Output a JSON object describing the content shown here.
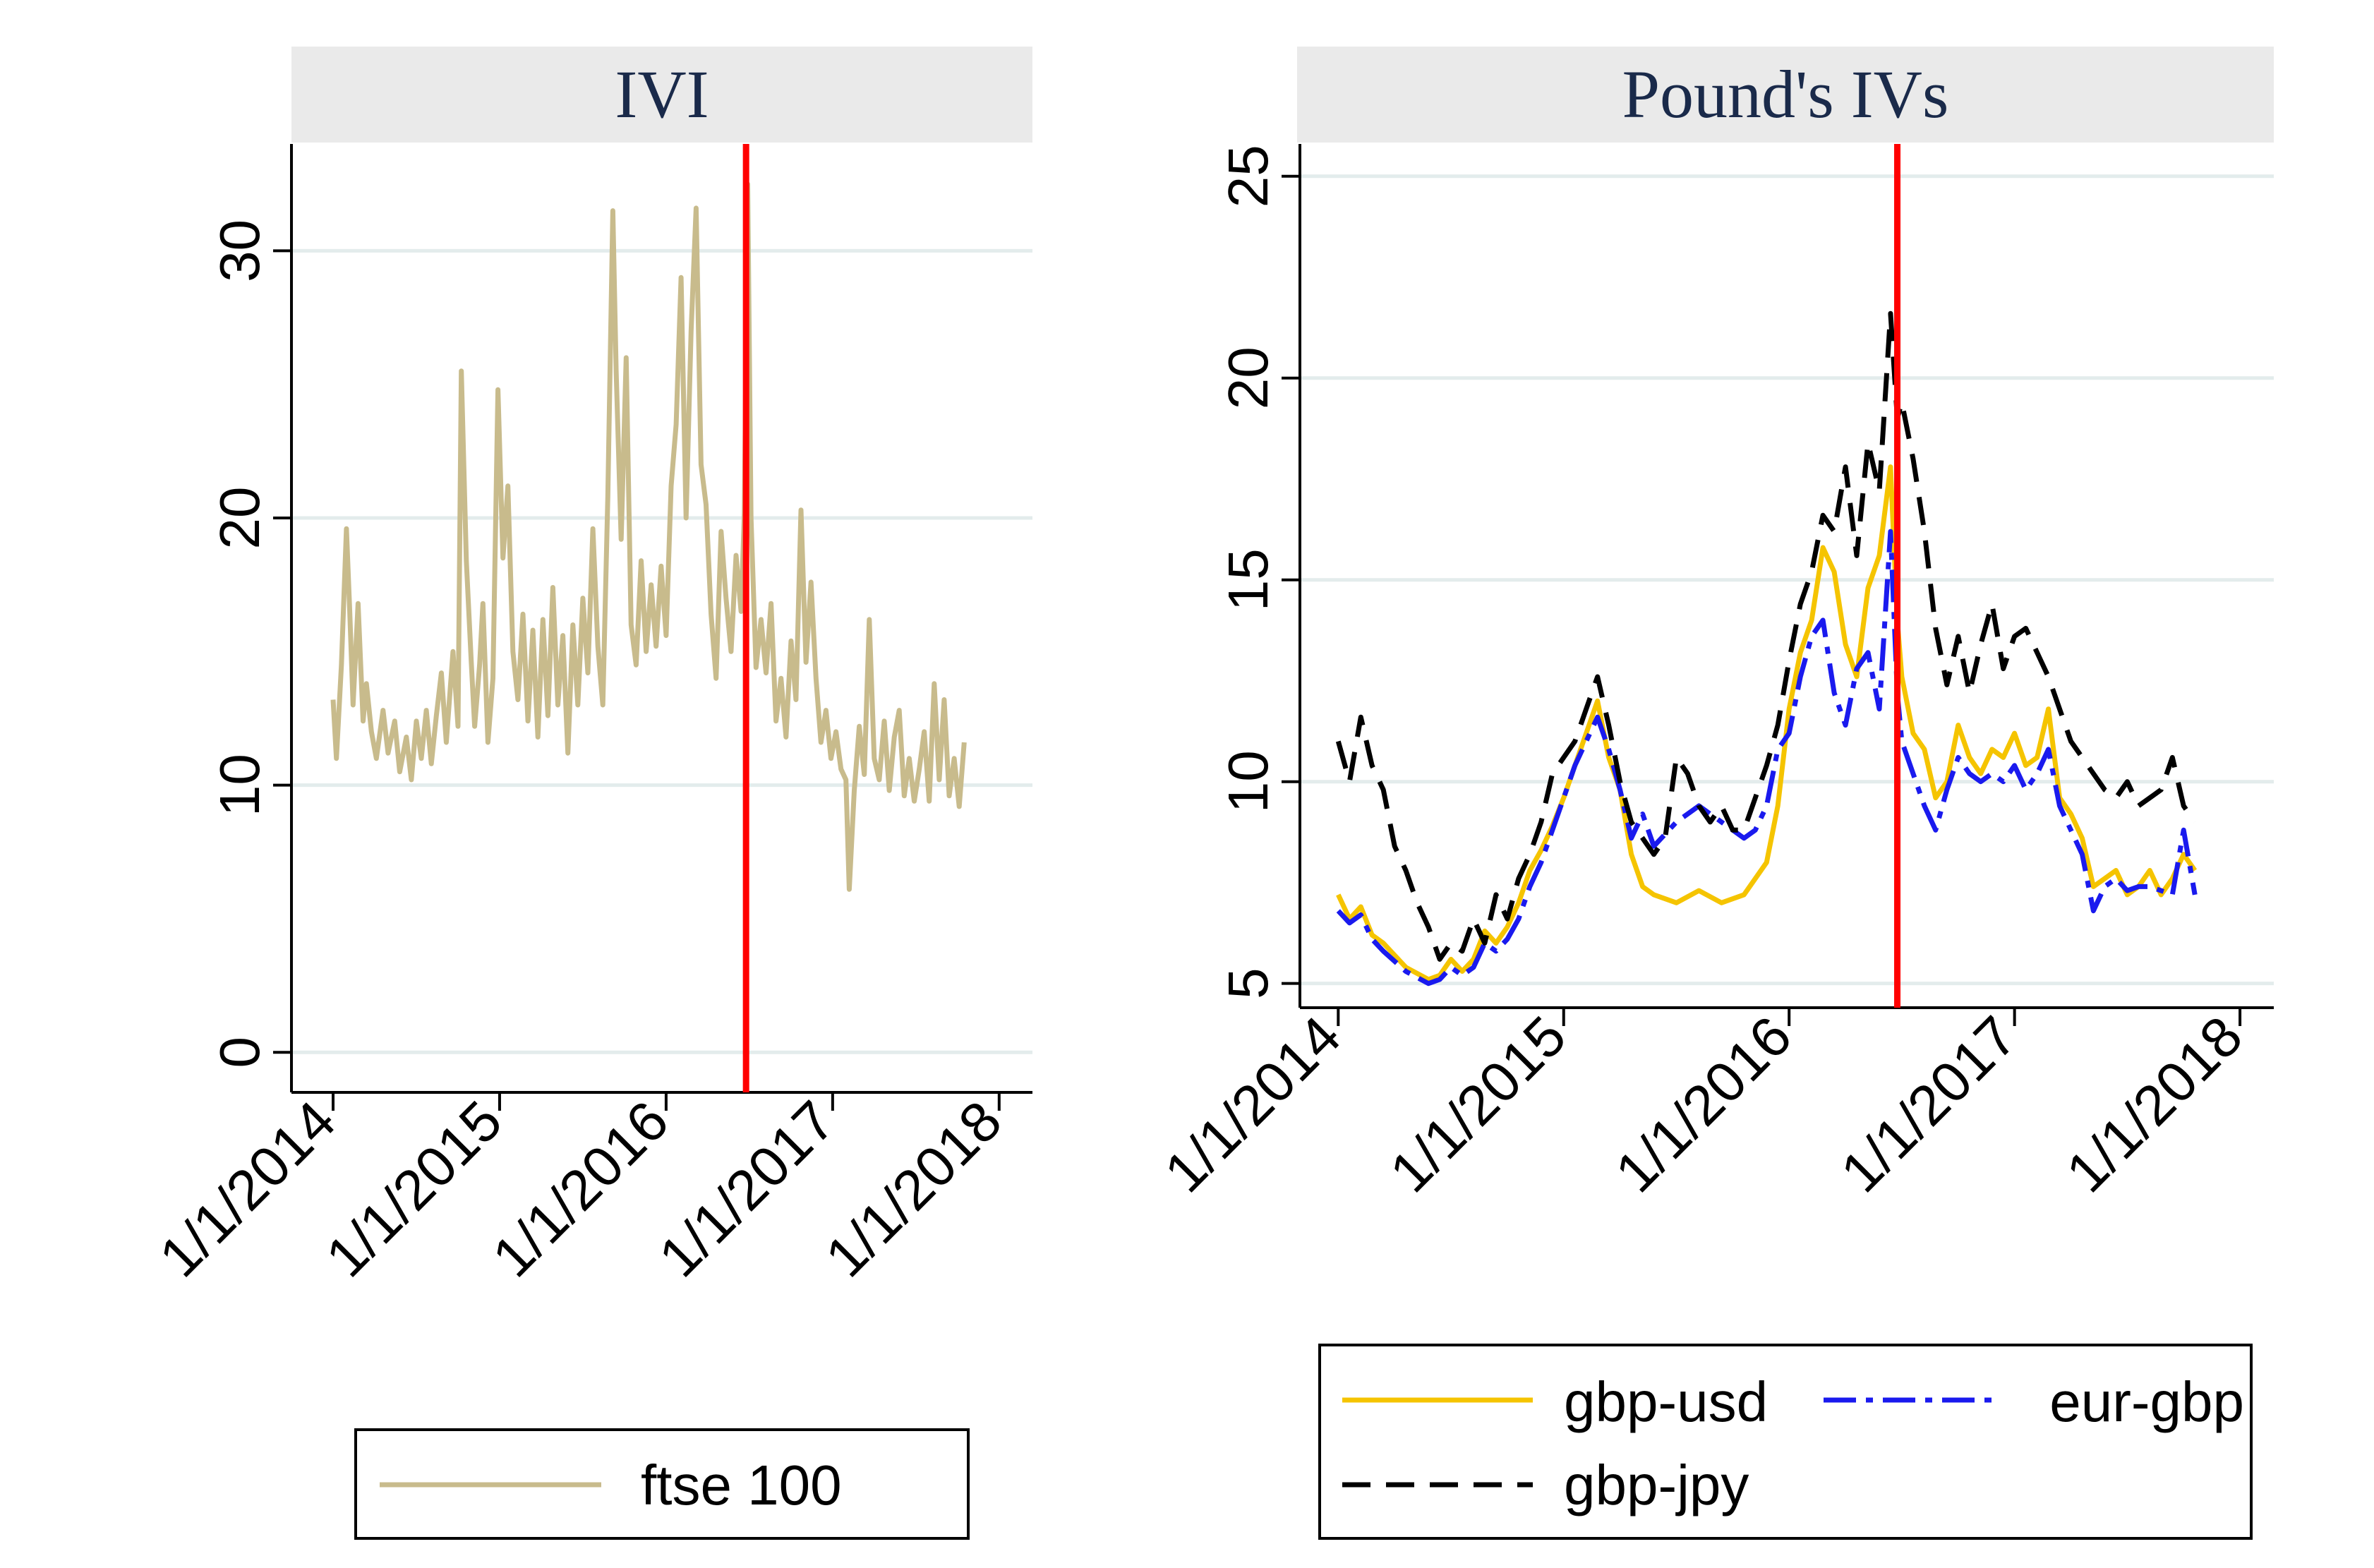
{
  "chart_data": [
    {
      "type": "line",
      "title": "IVI",
      "xlabel": "",
      "ylabel": "",
      "ylim": [
        -1.5,
        34
      ],
      "yticks": [
        0,
        10,
        20,
        30
      ],
      "ytick_labels": [
        "0",
        "10",
        "20",
        "30"
      ],
      "xlim": [
        -0.25,
        4.2
      ],
      "xticks": [
        0,
        1,
        2,
        3,
        4
      ],
      "xtick_labels": [
        "1/1/2014",
        "1/1/2015",
        "1/1/2016",
        "1/1/2017",
        "1/1/2018"
      ],
      "grid": true,
      "event_line": {
        "x": 2.48,
        "color": "#ff0000"
      },
      "legend": {
        "position": "bottom-center",
        "entries": [
          "ftse 100"
        ]
      },
      "series": [
        {
          "name": "ftse 100",
          "color": "#c8bb8c",
          "dash": "solid",
          "x": [
            0.0,
            0.02,
            0.05,
            0.08,
            0.1,
            0.12,
            0.15,
            0.18,
            0.2,
            0.23,
            0.26,
            0.3,
            0.33,
            0.37,
            0.4,
            0.44,
            0.47,
            0.5,
            0.53,
            0.56,
            0.59,
            0.62,
            0.65,
            0.68,
            0.72,
            0.75,
            0.77,
            0.8,
            0.83,
            0.85,
            0.88,
            0.9,
            0.93,
            0.96,
            0.99,
            1.02,
            1.05,
            1.08,
            1.11,
            1.14,
            1.17,
            1.2,
            1.23,
            1.26,
            1.29,
            1.32,
            1.35,
            1.38,
            1.41,
            1.44,
            1.47,
            1.5,
            1.53,
            1.56,
            1.59,
            1.62,
            1.65,
            1.68,
            1.7,
            1.73,
            1.76,
            1.79,
            1.82,
            1.85,
            1.88,
            1.91,
            1.94,
            1.97,
            2.0,
            2.03,
            2.06,
            2.09,
            2.12,
            2.15,
            2.18,
            2.21,
            2.24,
            2.27,
            2.3,
            2.33,
            2.36,
            2.39,
            2.42,
            2.45,
            2.47,
            2.49,
            2.51,
            2.54,
            2.57,
            2.6,
            2.63,
            2.66,
            2.69,
            2.72,
            2.75,
            2.78,
            2.81,
            2.84,
            2.87,
            2.9,
            2.93,
            2.96,
            2.99,
            3.02,
            3.05,
            3.08,
            3.1,
            3.13,
            3.16,
            3.19,
            3.22,
            3.25,
            3.28,
            3.31,
            3.34,
            3.37,
            3.4,
            3.43,
            3.46,
            3.49,
            3.52,
            3.55,
            3.58,
            3.61,
            3.64,
            3.67,
            3.7,
            3.73,
            3.76,
            3.79
          ],
          "values": [
            13.2,
            11.0,
            14.5,
            19.6,
            16.5,
            13.0,
            16.8,
            12.4,
            13.8,
            12.0,
            11.0,
            12.8,
            11.2,
            12.4,
            10.5,
            11.8,
            10.2,
            12.4,
            11.0,
            12.8,
            10.8,
            12.6,
            14.2,
            11.6,
            15.0,
            12.2,
            25.5,
            18.4,
            14.6,
            12.2,
            14.5,
            16.8,
            11.6,
            14.0,
            24.8,
            18.5,
            21.2,
            15.0,
            13.2,
            16.4,
            12.4,
            15.8,
            11.8,
            16.2,
            12.6,
            17.4,
            13.0,
            15.6,
            11.2,
            16.0,
            13.0,
            17.0,
            14.2,
            19.6,
            15.2,
            13.0,
            20.8,
            31.5,
            25.5,
            19.2,
            26.0,
            16.0,
            14.5,
            18.4,
            15.0,
            17.5,
            15.2,
            18.2,
            15.6,
            21.2,
            23.5,
            29.0,
            20.0,
            27.0,
            31.6,
            22.0,
            20.5,
            16.4,
            14.0,
            19.5,
            17.0,
            15.0,
            18.6,
            16.5,
            20.2,
            32.5,
            20.0,
            14.4,
            16.2,
            14.2,
            16.8,
            12.4,
            14.0,
            11.8,
            15.4,
            13.2,
            20.3,
            14.6,
            17.6,
            14.0,
            11.6,
            12.8,
            11.0,
            12.0,
            10.6,
            10.2,
            6.1,
            9.8,
            12.2,
            10.4,
            16.2,
            11.0,
            10.2,
            12.4,
            9.8,
            11.8,
            12.8,
            9.6,
            11.0,
            9.4,
            10.6,
            12.0,
            9.4,
            13.8,
            10.2,
            13.2,
            9.6,
            11.0,
            9.2,
            11.6
          ]
        }
      ]
    },
    {
      "type": "line",
      "title": "Pound's IVs",
      "xlabel": "",
      "ylabel": "",
      "ylim": [
        4.4,
        25.8
      ],
      "yticks": [
        5,
        10,
        15,
        20,
        25
      ],
      "ytick_labels": [
        "5",
        "10",
        "15",
        "20",
        "25"
      ],
      "xlim": [
        -0.17,
        4.15
      ],
      "xticks": [
        0,
        1,
        2,
        3,
        4
      ],
      "xtick_labels": [
        "1/1/2014",
        "1/1/2015",
        "1/1/2016",
        "1/1/2017",
        "1/1/2018"
      ],
      "grid": true,
      "event_line": {
        "x": 2.48,
        "color": "#ff0000"
      },
      "legend": {
        "position": "bottom",
        "entries": [
          "gbp-usd",
          "eur-gbp",
          "gbp-jpy"
        ]
      },
      "series": [
        {
          "name": "gbp-usd",
          "color": "#f5c400",
          "dash": "solid",
          "x": [
            0.0,
            0.05,
            0.1,
            0.15,
            0.2,
            0.3,
            0.4,
            0.45,
            0.5,
            0.55,
            0.6,
            0.65,
            0.7,
            0.75,
            0.8,
            0.85,
            0.9,
            0.95,
            1.0,
            1.05,
            1.1,
            1.15,
            1.2,
            1.25,
            1.3,
            1.35,
            1.4,
            1.5,
            1.6,
            1.7,
            1.8,
            1.85,
            1.9,
            1.95,
            2.0,
            2.05,
            2.1,
            2.15,
            2.2,
            2.25,
            2.3,
            2.35,
            2.4,
            2.45,
            2.48,
            2.5,
            2.55,
            2.6,
            2.65,
            2.7,
            2.75,
            2.8,
            2.85,
            2.9,
            2.95,
            3.0,
            3.05,
            3.1,
            3.15,
            3.2,
            3.25,
            3.3,
            3.35,
            3.4,
            3.45,
            3.5,
            3.55,
            3.6,
            3.65,
            3.7,
            3.75,
            3.8
          ],
          "values": [
            7.2,
            6.6,
            6.9,
            6.2,
            6.0,
            5.4,
            5.1,
            5.2,
            5.6,
            5.3,
            5.6,
            6.3,
            6.0,
            6.4,
            7.0,
            7.8,
            8.3,
            8.9,
            9.6,
            10.4,
            11.2,
            12.0,
            10.6,
            9.8,
            8.2,
            7.4,
            7.2,
            7.0,
            7.3,
            7.0,
            7.2,
            7.6,
            8.0,
            9.4,
            11.8,
            13.2,
            14.0,
            15.8,
            15.2,
            13.4,
            12.6,
            14.8,
            15.6,
            17.8,
            14.0,
            12.6,
            11.2,
            10.8,
            9.6,
            10.0,
            11.4,
            10.6,
            10.2,
            10.8,
            10.6,
            11.2,
            10.4,
            10.6,
            11.8,
            9.6,
            9.2,
            8.6,
            7.4,
            7.6,
            7.8,
            7.2,
            7.4,
            7.8,
            7.2,
            7.6,
            8.2,
            7.8
          ]
        },
        {
          "name": "eur-gbp",
          "color": "#1a1aee",
          "dash": "dashdot",
          "x": [
            0.0,
            0.05,
            0.1,
            0.15,
            0.2,
            0.3,
            0.4,
            0.45,
            0.5,
            0.55,
            0.6,
            0.65,
            0.7,
            0.75,
            0.8,
            0.85,
            0.9,
            0.95,
            1.0,
            1.05,
            1.1,
            1.15,
            1.2,
            1.25,
            1.3,
            1.35,
            1.4,
            1.5,
            1.6,
            1.7,
            1.8,
            1.85,
            1.9,
            1.95,
            2.0,
            2.05,
            2.1,
            2.15,
            2.2,
            2.25,
            2.3,
            2.35,
            2.4,
            2.45,
            2.48,
            2.5,
            2.55,
            2.6,
            2.65,
            2.7,
            2.75,
            2.8,
            2.85,
            2.9,
            2.95,
            3.0,
            3.05,
            3.1,
            3.15,
            3.2,
            3.25,
            3.3,
            3.35,
            3.4,
            3.45,
            3.5,
            3.55,
            3.6,
            3.65,
            3.7,
            3.75,
            3.8
          ],
          "values": [
            6.8,
            6.5,
            6.7,
            6.1,
            5.8,
            5.3,
            5.0,
            5.1,
            5.4,
            5.2,
            5.4,
            6.0,
            5.8,
            6.1,
            6.6,
            7.4,
            8.0,
            8.8,
            9.6,
            10.4,
            11.0,
            11.6,
            10.8,
            9.8,
            8.6,
            9.2,
            8.4,
            9.0,
            9.4,
            9.0,
            8.6,
            8.8,
            9.4,
            10.8,
            11.2,
            12.6,
            13.6,
            14.0,
            12.2,
            11.4,
            12.8,
            13.2,
            11.8,
            16.2,
            12.2,
            11.0,
            10.2,
            9.4,
            8.8,
            9.8,
            10.6,
            10.2,
            10.0,
            10.2,
            10.0,
            10.4,
            9.8,
            10.2,
            10.8,
            9.4,
            8.8,
            8.2,
            6.8,
            7.4,
            7.6,
            7.3,
            7.4,
            7.4,
            7.3,
            7.2,
            8.8,
            7.2
          ]
        },
        {
          "name": "gbp-jpy",
          "color": "#000000",
          "dash": "dashed",
          "x": [
            0.0,
            0.05,
            0.1,
            0.15,
            0.2,
            0.25,
            0.3,
            0.35,
            0.4,
            0.45,
            0.5,
            0.55,
            0.6,
            0.65,
            0.7,
            0.75,
            0.8,
            0.85,
            0.9,
            0.95,
            1.0,
            1.05,
            1.1,
            1.15,
            1.2,
            1.25,
            1.3,
            1.35,
            1.4,
            1.45,
            1.5,
            1.55,
            1.6,
            1.65,
            1.7,
            1.75,
            1.8,
            1.85,
            1.9,
            1.95,
            2.0,
            2.05,
            2.1,
            2.15,
            2.2,
            2.25,
            2.3,
            2.35,
            2.4,
            2.45,
            2.48,
            2.5,
            2.55,
            2.6,
            2.65,
            2.7,
            2.75,
            2.8,
            2.85,
            2.9,
            2.95,
            3.0,
            3.05,
            3.1,
            3.15,
            3.2,
            3.25,
            3.3,
            3.35,
            3.4,
            3.45,
            3.5,
            3.55,
            3.6,
            3.65,
            3.7,
            3.75,
            3.8
          ],
          "values": [
            11.0,
            10.0,
            11.6,
            10.4,
            9.8,
            8.4,
            7.8,
            7.0,
            6.4,
            5.6,
            6.0,
            5.8,
            6.6,
            6.0,
            7.2,
            6.6,
            7.6,
            8.2,
            9.0,
            10.2,
            10.6,
            11.0,
            11.8,
            12.6,
            11.4,
            10.0,
            9.0,
            8.6,
            8.2,
            8.6,
            10.6,
            10.2,
            9.4,
            9.0,
            9.4,
            8.8,
            8.8,
            9.6,
            10.4,
            11.4,
            13.0,
            14.4,
            15.2,
            16.6,
            16.2,
            17.8,
            15.6,
            18.4,
            17.2,
            21.6,
            19.0,
            19.4,
            18.0,
            16.2,
            13.8,
            12.4,
            13.6,
            12.2,
            13.4,
            14.4,
            12.8,
            13.6,
            13.8,
            13.2,
            12.6,
            11.8,
            11.0,
            10.6,
            10.2,
            9.8,
            9.6,
            10.0,
            9.4,
            9.6,
            9.8,
            10.6,
            9.4,
            9.0
          ]
        }
      ]
    }
  ]
}
